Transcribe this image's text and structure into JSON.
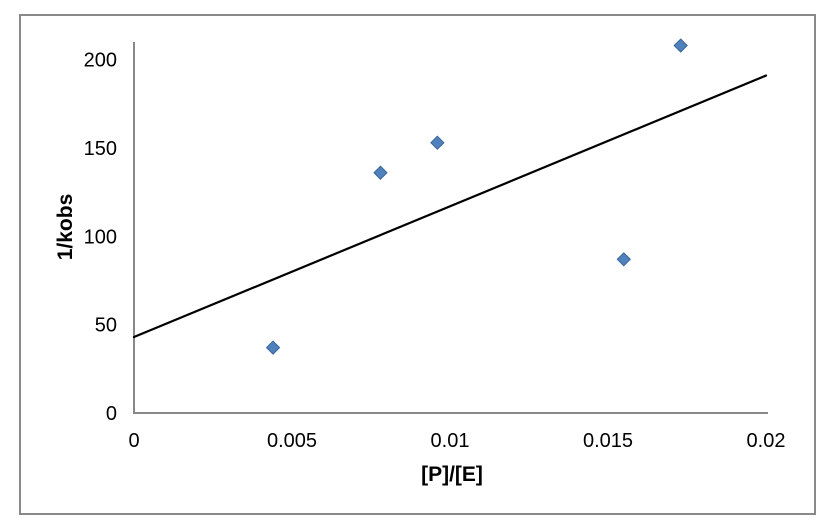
{
  "chart_data": {
    "type": "scatter",
    "title": "",
    "xlabel": "[P]/[E]",
    "ylabel": "1/kobs",
    "xlim": [
      0,
      0.02
    ],
    "ylim": [
      0,
      210
    ],
    "grid": false,
    "legend": false,
    "x_ticks": [
      {
        "value": 0,
        "label": "0"
      },
      {
        "value": 0.005,
        "label": "0.005"
      },
      {
        "value": 0.01,
        "label": "0.01"
      },
      {
        "value": 0.015,
        "label": "0.015"
      },
      {
        "value": 0.02,
        "label": "0.02"
      }
    ],
    "y_ticks": [
      {
        "value": 0,
        "label": "0"
      },
      {
        "value": 50,
        "label": "50"
      },
      {
        "value": 100,
        "label": "100"
      },
      {
        "value": 150,
        "label": "150"
      },
      {
        "value": 200,
        "label": "200"
      }
    ],
    "series": [
      {
        "marker": "diamond",
        "color": "#4F81BD",
        "edge_color": "#3A6598",
        "points": [
          {
            "x": 0.0044,
            "y": 37
          },
          {
            "x": 0.0078,
            "y": 136
          },
          {
            "x": 0.0096,
            "y": 153
          },
          {
            "x": 0.0155,
            "y": 87
          },
          {
            "x": 0.0173,
            "y": 208
          }
        ]
      }
    ],
    "trendline": {
      "type": "linear",
      "x1": 0,
      "y1": 43,
      "x2": 0.02,
      "y2": 191,
      "color": "#000000"
    },
    "colors": {
      "axis": "#898989",
      "frame_border": "#898989",
      "text": "#000000",
      "background": "#FFFFFF"
    }
  }
}
